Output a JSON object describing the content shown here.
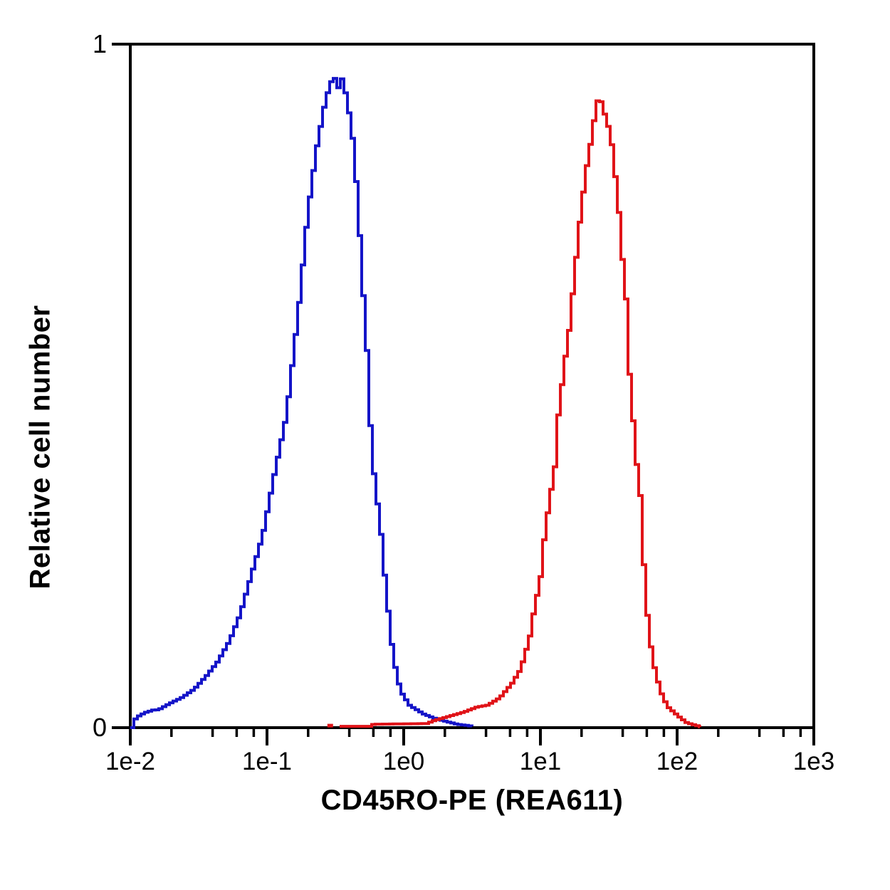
{
  "chart_data": {
    "type": "line",
    "subtype": "flow-cytometry histogram overlay (step curves)",
    "title": "",
    "xlabel": "CD45RO-PE (REA611)",
    "ylabel": "Relative cell number",
    "x_scale": "log",
    "x_range": [
      0.01,
      1000
    ],
    "y_range": [
      0,
      1
    ],
    "x_tick_labels": [
      "1e-2",
      "1e-1",
      "1e0",
      "1e1",
      "1e2",
      "1e3"
    ],
    "x_minor_ticks_per_decade": [
      2,
      4,
      6,
      8
    ],
    "y_tick_labels": [
      "1",
      "0"
    ],
    "grid": false,
    "legend": "none",
    "axis_color": "#000000",
    "background_color": "#ffffff",
    "series": [
      {
        "name": "blue-curve",
        "color": "#1414C8",
        "peak": {
          "x": 0.33,
          "y": 0.95
        },
        "points": [
          [
            0.01,
            0.0
          ],
          [
            0.0103,
            0.01
          ],
          [
            0.011,
            0.016
          ],
          [
            0.0125,
            0.022
          ],
          [
            0.0145,
            0.026
          ],
          [
            0.0156,
            0.026
          ],
          [
            0.0187,
            0.035
          ],
          [
            0.0232,
            0.044
          ],
          [
            0.0284,
            0.056
          ],
          [
            0.0348,
            0.075
          ],
          [
            0.0422,
            0.096
          ],
          [
            0.0518,
            0.127
          ],
          [
            0.0619,
            0.166
          ],
          [
            0.0741,
            0.221
          ],
          [
            0.0908,
            0.283
          ],
          [
            0.11,
            0.37
          ],
          [
            0.135,
            0.457
          ],
          [
            0.166,
            0.614
          ],
          [
            0.193,
            0.752
          ],
          [
            0.223,
            0.845
          ],
          [
            0.261,
            0.919
          ],
          [
            0.287,
            0.945
          ],
          [
            0.313,
            0.952
          ],
          [
            0.324,
            0.936
          ],
          [
            0.34,
            0.953
          ],
          [
            0.365,
            0.929
          ],
          [
            0.406,
            0.877
          ],
          [
            0.448,
            0.773
          ],
          [
            0.487,
            0.648
          ],
          [
            0.524,
            0.55
          ],
          [
            0.569,
            0.398
          ],
          [
            0.62,
            0.335
          ],
          [
            0.665,
            0.283
          ],
          [
            0.723,
            0.2
          ],
          [
            0.815,
            0.103
          ],
          [
            0.92,
            0.054
          ],
          [
            1.07,
            0.033
          ],
          [
            1.36,
            0.02
          ],
          [
            1.67,
            0.013
          ],
          [
            2.0,
            0.009
          ],
          [
            2.4,
            0.005
          ],
          [
            3.16,
            0.002
          ]
        ]
      },
      {
        "name": "red-curve",
        "color": "#E01318",
        "peak": {
          "x": 26,
          "y": 0.93
        },
        "isolated_point": {
          "x": 0.29,
          "y": 0.003
        },
        "points": [
          [
            0.34,
            0.002
          ],
          [
            0.57,
            0.002
          ],
          [
            0.585,
            0.005
          ],
          [
            1.48,
            0.006
          ],
          [
            1.54,
            0.009
          ],
          [
            2.21,
            0.018
          ],
          [
            2.7,
            0.023
          ],
          [
            3.32,
            0.03
          ],
          [
            4.02,
            0.033
          ],
          [
            4.93,
            0.044
          ],
          [
            6.04,
            0.065
          ],
          [
            6.81,
            0.082
          ],
          [
            7.32,
            0.099
          ],
          [
            8.26,
            0.138
          ],
          [
            8.45,
            0.155
          ],
          [
            9.77,
            0.221
          ],
          [
            10.5,
            0.286
          ],
          [
            11.4,
            0.335
          ],
          [
            12.4,
            0.38
          ],
          [
            12.9,
            0.432
          ],
          [
            13.3,
            0.468
          ],
          [
            14.0,
            0.502
          ],
          [
            14.5,
            0.523
          ],
          [
            15.0,
            0.551
          ],
          [
            15.8,
            0.582
          ],
          [
            16.4,
            0.609
          ],
          [
            16.9,
            0.645
          ],
          [
            17.4,
            0.669
          ],
          [
            18.9,
            0.74
          ],
          [
            20.8,
            0.81
          ],
          [
            22.9,
            0.86
          ],
          [
            24.3,
            0.895
          ],
          [
            26.0,
            0.926
          ],
          [
            27.9,
            0.908
          ],
          [
            29.8,
            0.885
          ],
          [
            30.9,
            0.877
          ],
          [
            32.4,
            0.853
          ],
          [
            33.6,
            0.832
          ],
          [
            34.8,
            0.794
          ],
          [
            36.5,
            0.755
          ],
          [
            37.8,
            0.71
          ],
          [
            41.2,
            0.627
          ],
          [
            42.7,
            0.551
          ],
          [
            44.3,
            0.499
          ],
          [
            46.4,
            0.45
          ],
          [
            48.1,
            0.408
          ],
          [
            49.9,
            0.374
          ],
          [
            52.4,
            0.339
          ],
          [
            53.0,
            0.304
          ],
          [
            54.2,
            0.266
          ],
          [
            57.6,
            0.2
          ],
          [
            59.7,
            0.148
          ],
          [
            65.0,
            0.096
          ],
          [
            73.3,
            0.054
          ],
          [
            82.6,
            0.031
          ],
          [
            95.3,
            0.02
          ],
          [
            102.0,
            0.015
          ],
          [
            115.0,
            0.007
          ],
          [
            130.0,
            0.004
          ],
          [
            147.0,
            0.001
          ]
        ]
      }
    ]
  }
}
